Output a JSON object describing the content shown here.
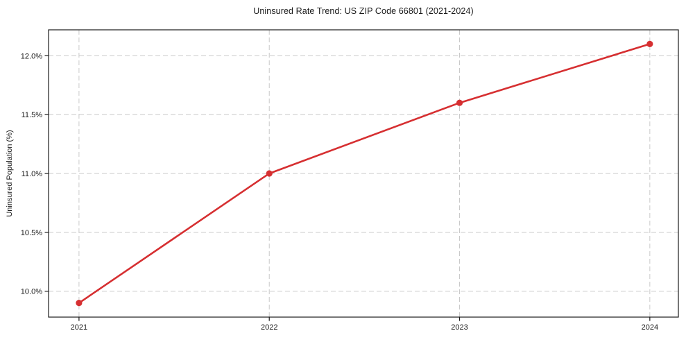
{
  "chart_data": {
    "type": "line",
    "title": "Uninsured Rate Trend: US ZIP Code 66801 (2021-2024)",
    "xlabel": "",
    "ylabel": "Uninsured Population (%)",
    "x": [
      2021,
      2022,
      2023,
      2024
    ],
    "x_tick_labels": [
      "2021",
      "2022",
      "2023",
      "2024"
    ],
    "y_ticks": [
      10.0,
      10.5,
      11.0,
      11.5,
      12.0
    ],
    "y_tick_labels": [
      "10.0%",
      "10.5%",
      "11.0%",
      "11.5%",
      "12.0%"
    ],
    "series": [
      {
        "name": "uninsured-rate",
        "values": [
          9.9,
          11.0,
          11.6,
          12.1
        ]
      }
    ],
    "xlim": [
      2020.84,
      2024.15
    ],
    "ylim": [
      9.78,
      12.22
    ],
    "grid": true,
    "grid_style": "dashed",
    "legend": false,
    "colors": {
      "line": "#d62f31",
      "marker": "#d62f31",
      "grid": "#c9c9c9",
      "spine": "#1a1a1a",
      "text": "#1a1a1a",
      "background": "#ffffff"
    }
  }
}
